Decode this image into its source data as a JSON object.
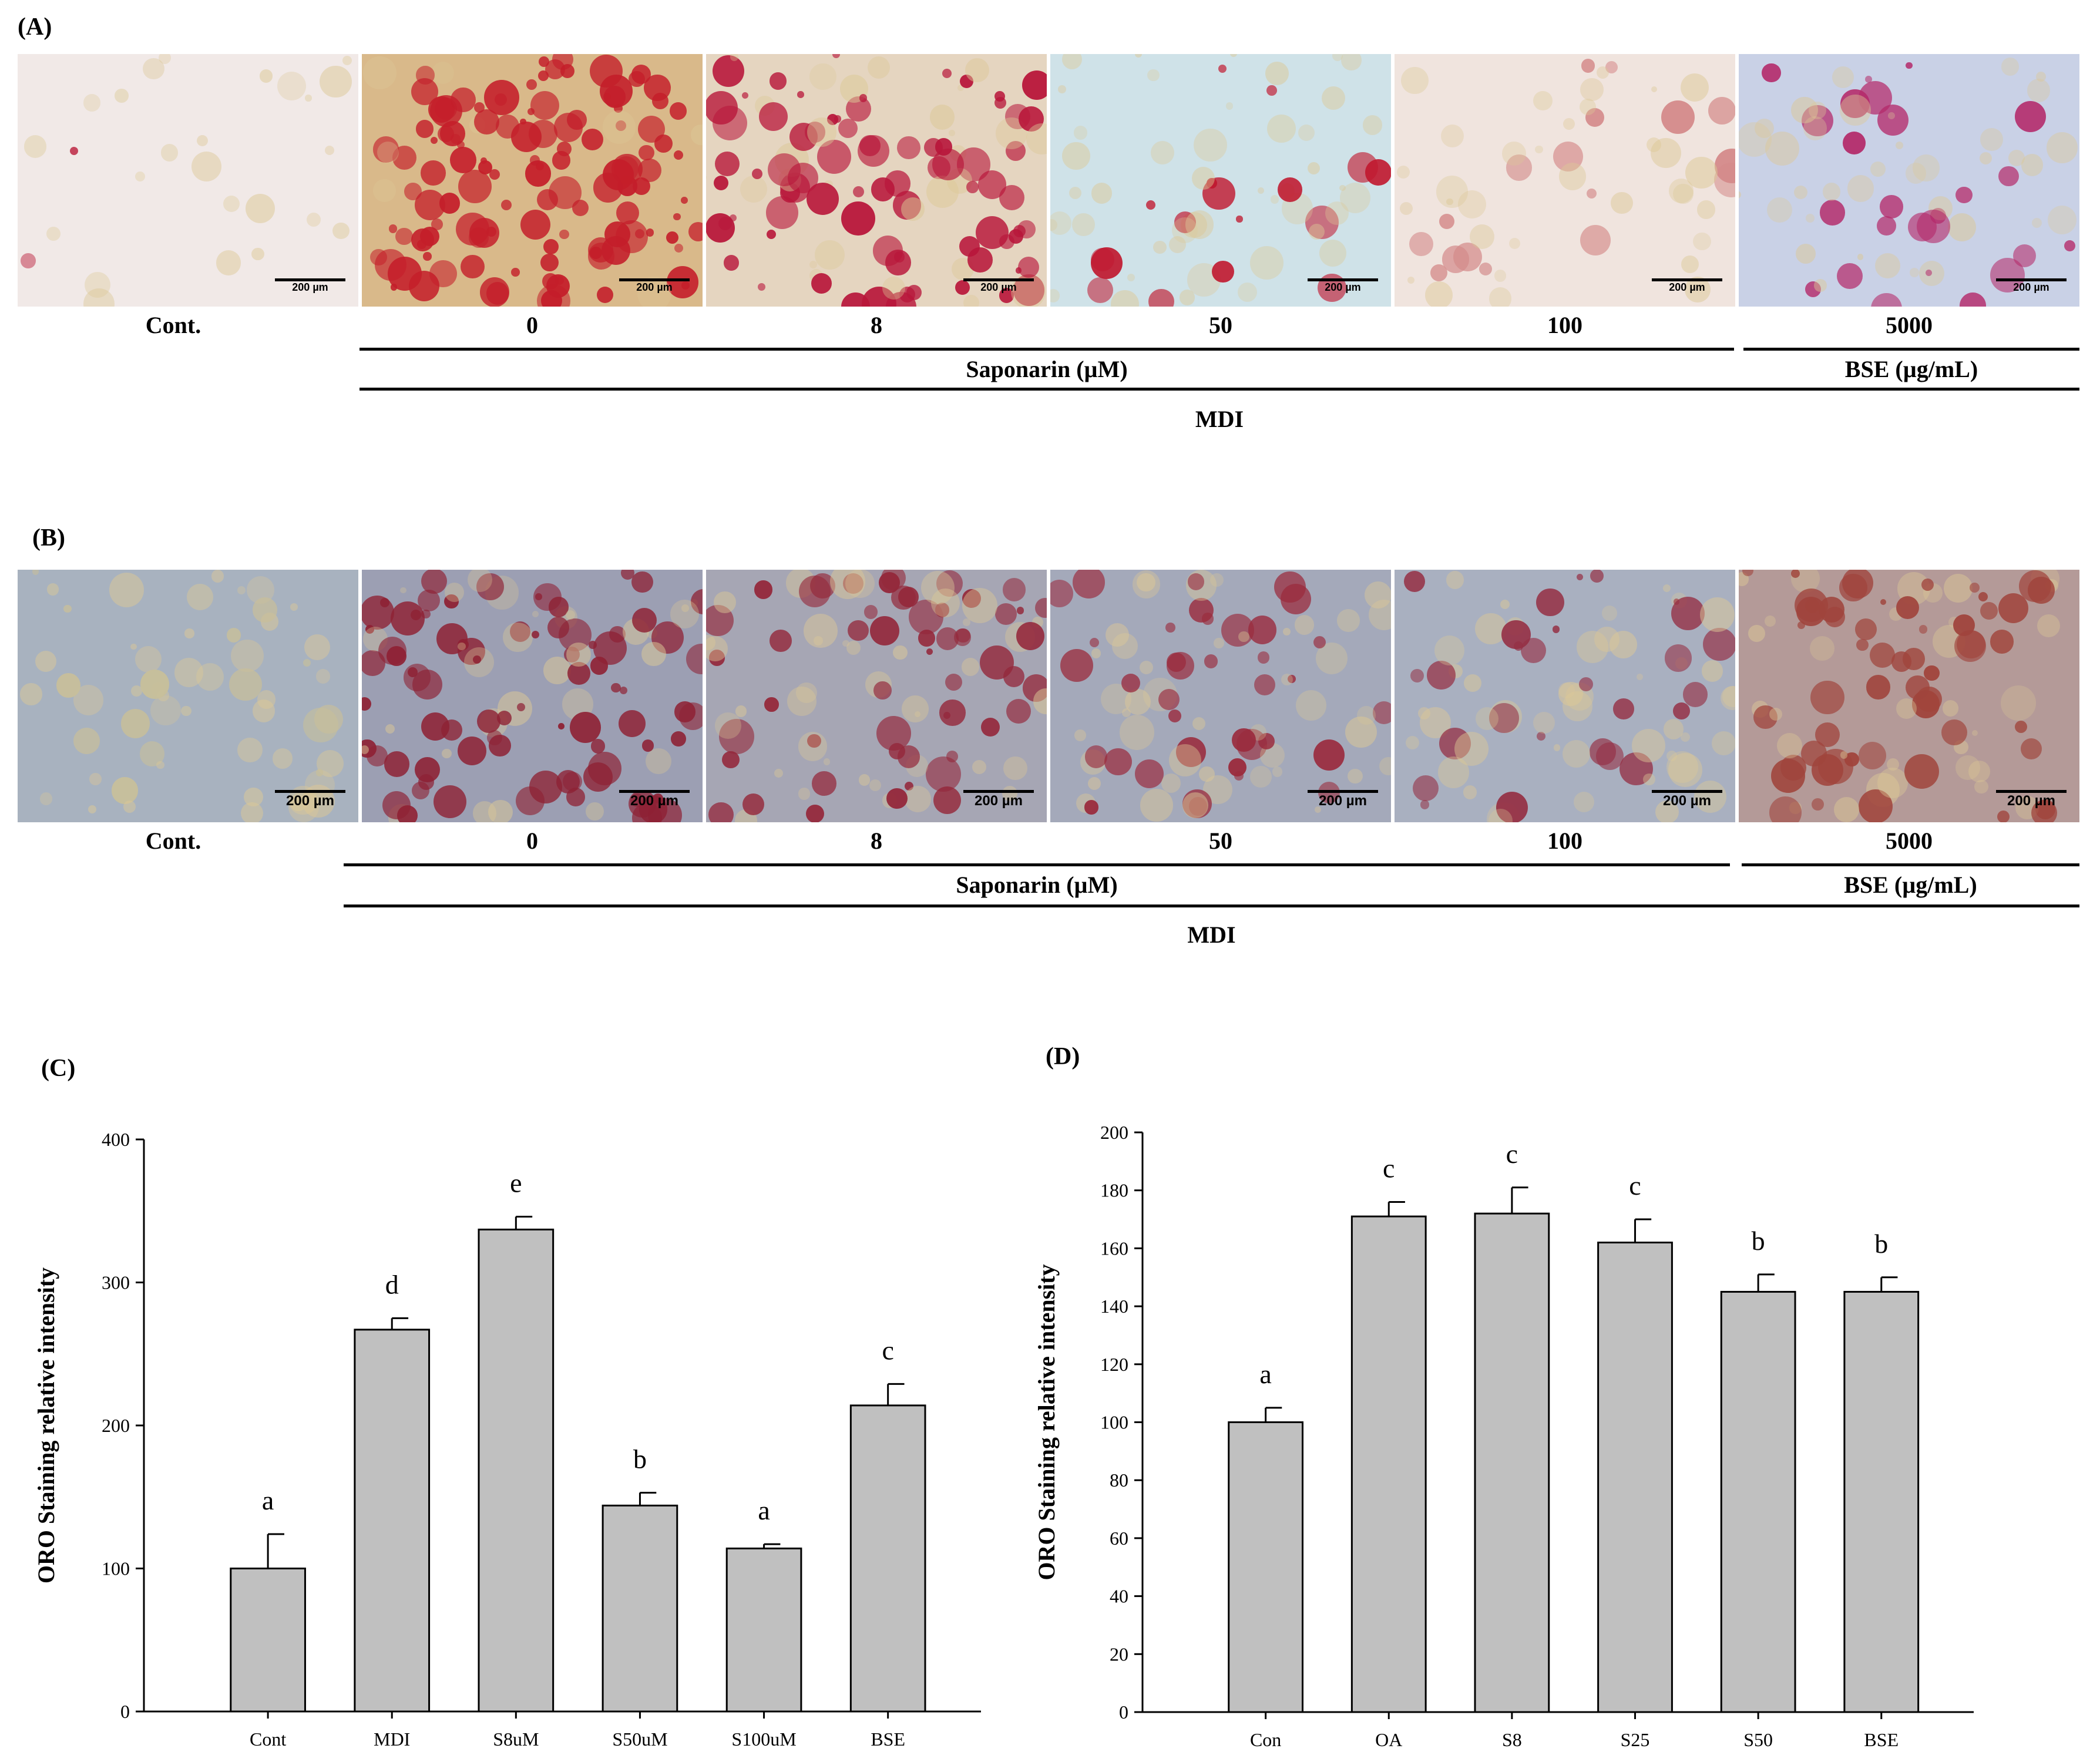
{
  "panel_A": {
    "label": "(A)",
    "scale_label": "200 µm",
    "images": [
      {
        "caption": "Cont.",
        "bg": "#f1e9e7",
        "stain": "#c23b54",
        "density": 0.05
      },
      {
        "caption": "0",
        "bg": "#d9b98a",
        "stain": "#c41e2a",
        "density": 0.9
      },
      {
        "caption": "8",
        "bg": "#e5d5c0",
        "stain": "#b8163a",
        "density": 0.7
      },
      {
        "caption": "50",
        "bg": "#cfe2e8",
        "stain": "#c0182f",
        "density": 0.35
      },
      {
        "caption": "100",
        "bg": "#f0e4de",
        "stain": "#d48a8a",
        "density": 0.25
      },
      {
        "caption": "5000",
        "bg": "#c9d1e6",
        "stain": "#b42a6a",
        "density": 0.35
      }
    ],
    "group1": "Saponarin (µM)",
    "group2": "BSE (µg/mL)",
    "group3": "MDI"
  },
  "panel_B": {
    "label": "(B)",
    "scale_label": "200 µm",
    "images": [
      {
        "caption": "Cont.",
        "bg": "#a8b2bf",
        "stain": "#c8bf9a",
        "density": 0.3
      },
      {
        "caption": "0",
        "bg": "#9c9fb3",
        "stain": "#8e2134",
        "density": 0.75
      },
      {
        "caption": "8",
        "bg": "#a6a6b4",
        "stain": "#94273a",
        "density": 0.6
      },
      {
        "caption": "50",
        "bg": "#a4a9ba",
        "stain": "#9a2a3c",
        "density": 0.5
      },
      {
        "caption": "100",
        "bg": "#a9b0c0",
        "stain": "#953045",
        "density": 0.45
      },
      {
        "caption": "5000",
        "bg": "#b49a98",
        "stain": "#a0443c",
        "density": 0.55
      }
    ],
    "group1": "Saponarin (µM)",
    "group2": "BSE (µg/mL)",
    "group3": "MDI"
  },
  "chart_data": [
    {
      "panel": "(C)",
      "type": "bar",
      "categories": [
        "Cont",
        "MDI",
        "S8uM",
        "S50uM",
        "S100uM",
        "BSE"
      ],
      "values": [
        100,
        267,
        337,
        144,
        114,
        214
      ],
      "errors": [
        24,
        8,
        9,
        9,
        3,
        15
      ],
      "letters": [
        "a",
        "d",
        "e",
        "b",
        "a",
        "c"
      ],
      "ylabel": "ORO Staining relative intensity",
      "xlabel": "",
      "ylim": [
        0,
        400
      ],
      "yticks": [
        0,
        100,
        200,
        300,
        400
      ],
      "bar_color": "#c0c0c0"
    },
    {
      "panel": "(D)",
      "type": "bar",
      "categories": [
        "Con",
        "OA",
        "S8",
        "S25",
        "S50",
        "BSE"
      ],
      "values": [
        100,
        171,
        172,
        162,
        145,
        145
      ],
      "errors": [
        5,
        5,
        9,
        8,
        6,
        5
      ],
      "letters": [
        "a",
        "c",
        "c",
        "c",
        "b",
        "b"
      ],
      "ylabel": "ORO Staining relative intensity",
      "xlabel": "",
      "ylim": [
        0,
        200
      ],
      "yticks": [
        0,
        20,
        40,
        60,
        80,
        100,
        120,
        140,
        160,
        180,
        200
      ],
      "bar_color": "#c0c0c0"
    }
  ]
}
